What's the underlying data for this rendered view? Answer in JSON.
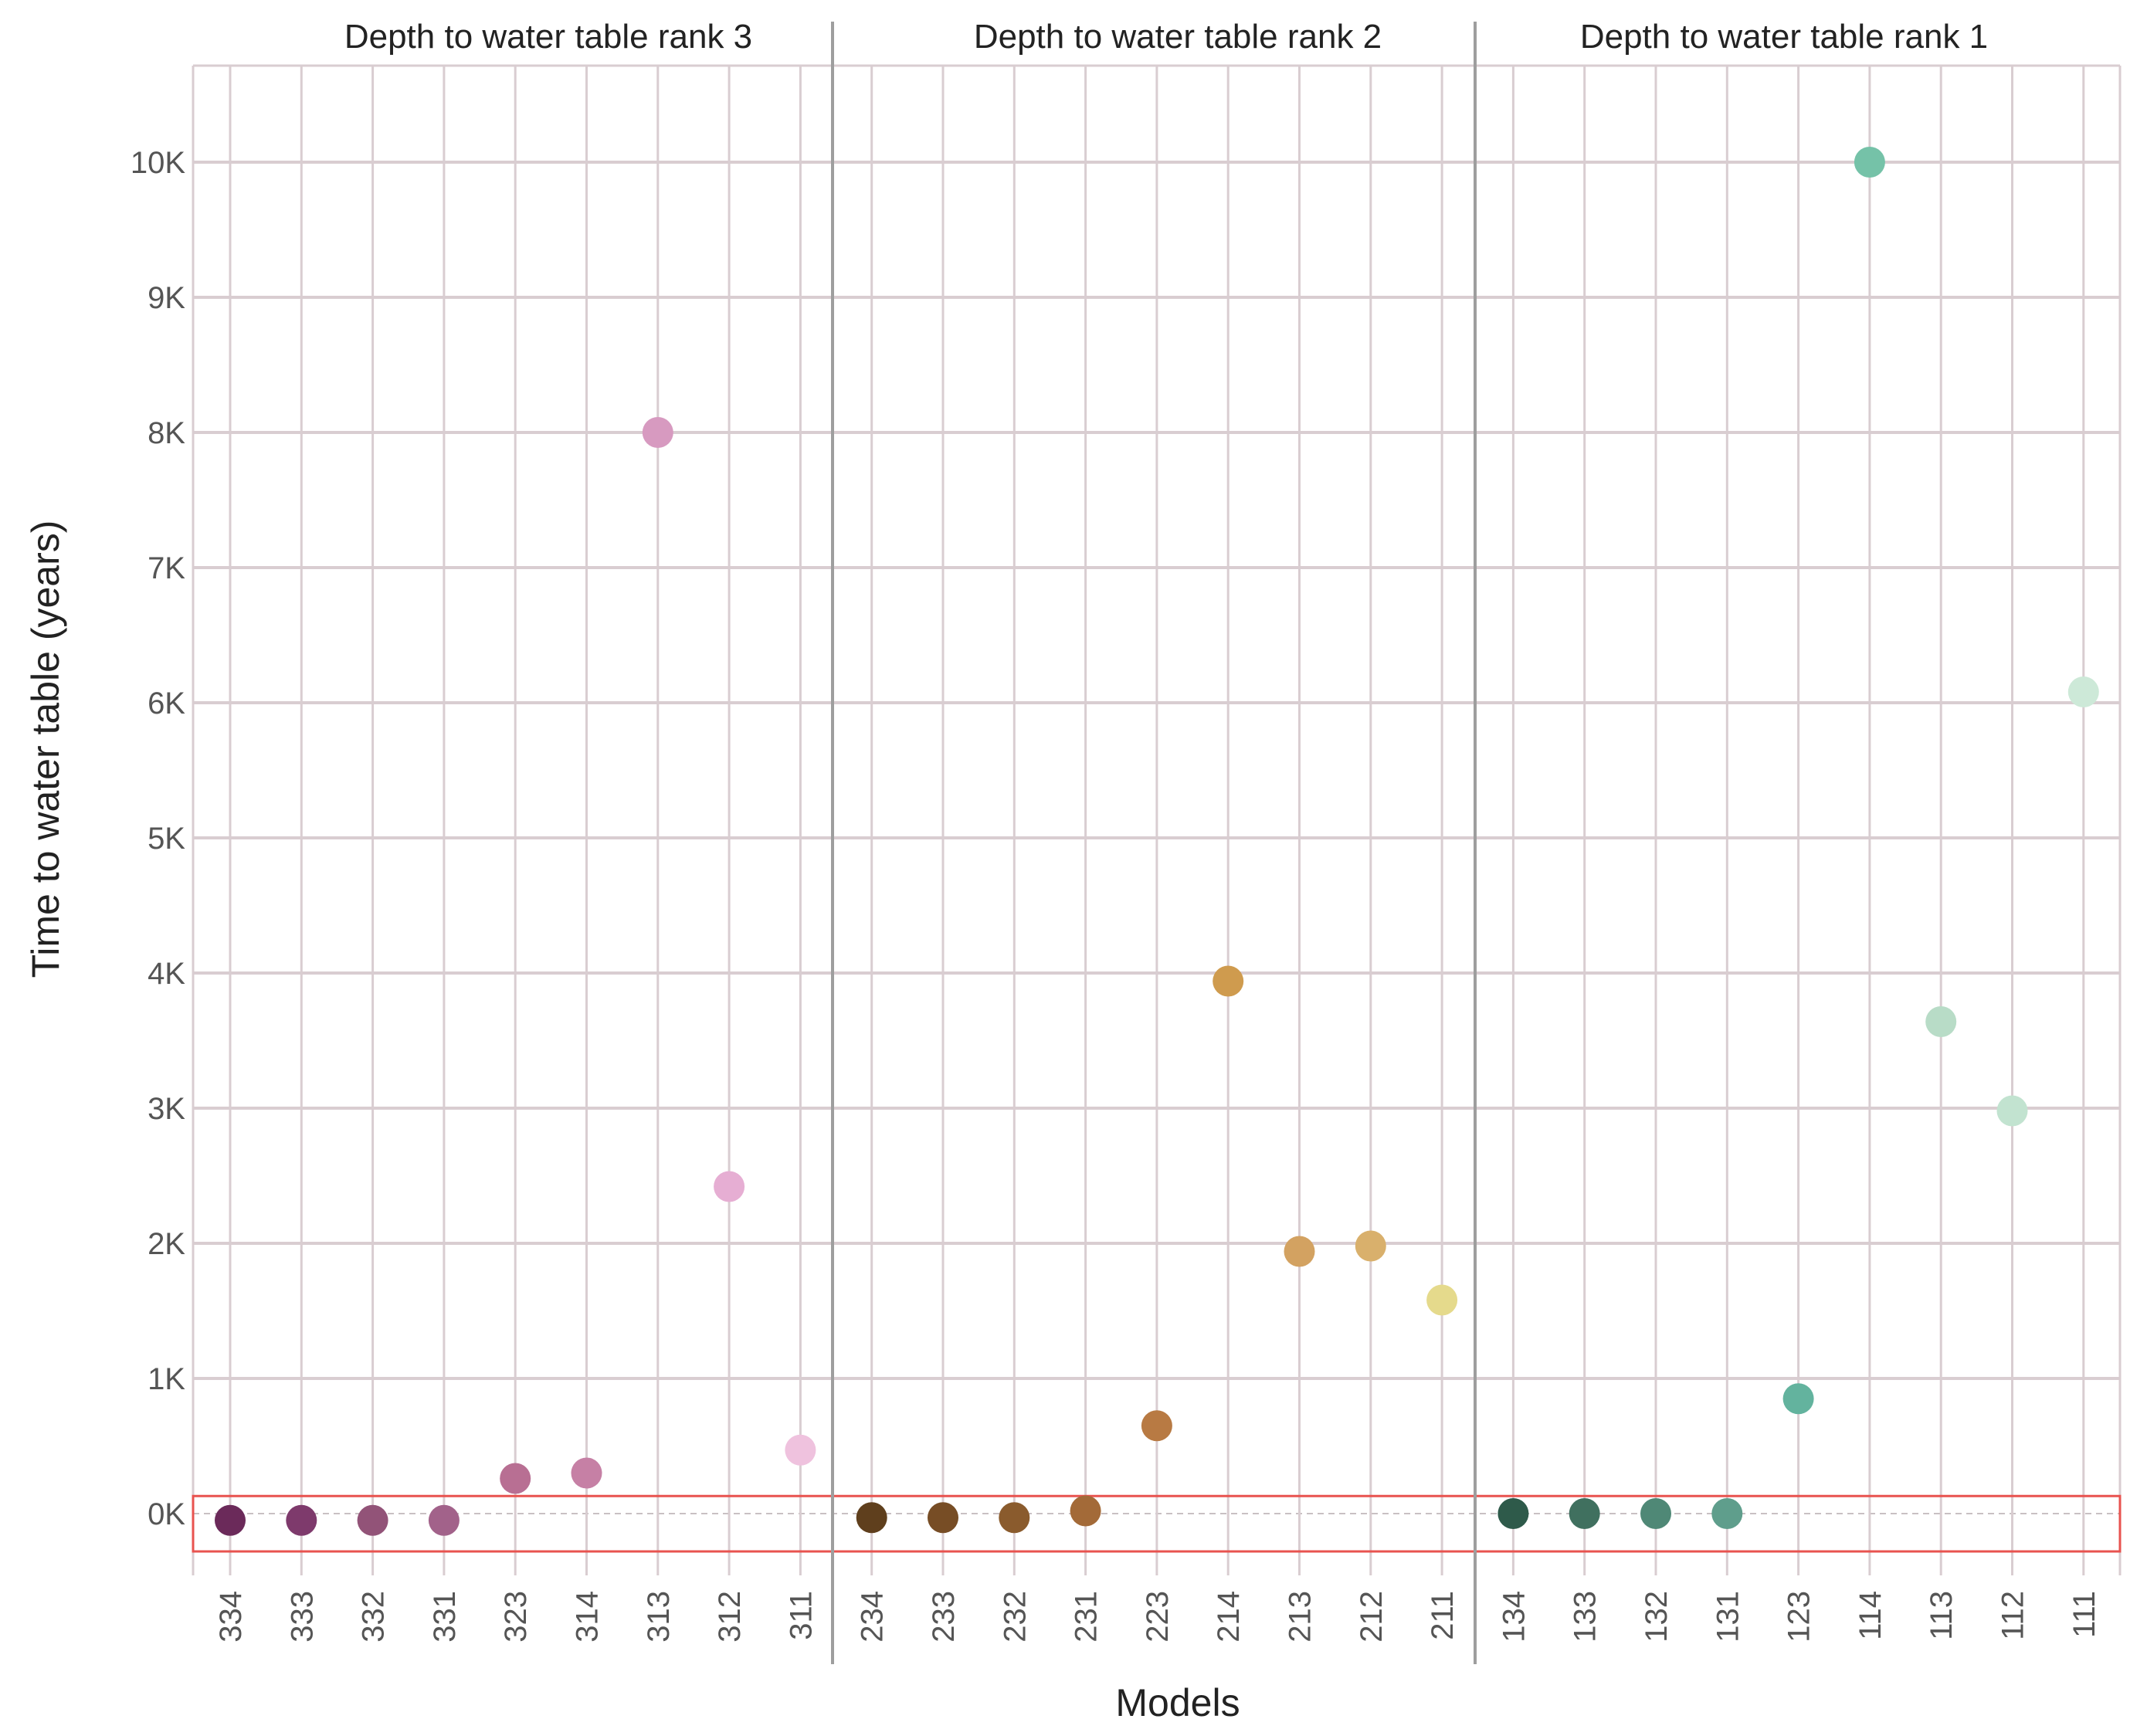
{
  "chart_data": {
    "type": "scatter",
    "xlabel": "Models",
    "ylabel": "Time to water table (years)",
    "ylim": [
      -500,
      10700
    ],
    "y_ticks": [
      {
        "value": 0,
        "label": "0K"
      },
      {
        "value": 1000,
        "label": "1K"
      },
      {
        "value": 2000,
        "label": "2K"
      },
      {
        "value": 3000,
        "label": "3K"
      },
      {
        "value": 4000,
        "label": "4K"
      },
      {
        "value": 5000,
        "label": "5K"
      },
      {
        "value": 6000,
        "label": "6K"
      },
      {
        "value": 7000,
        "label": "7K"
      },
      {
        "value": 8000,
        "label": "8K"
      },
      {
        "value": 9000,
        "label": "9K"
      },
      {
        "value": 10000,
        "label": "10K"
      }
    ],
    "grid": true,
    "highlight_band": {
      "from": -280,
      "to": 130,
      "color": "#e8534f"
    },
    "panels": [
      {
        "title": "Depth to water table rank 3",
        "points": [
          {
            "model": "334",
            "value": -50,
            "color": "#6b2a5a"
          },
          {
            "model": "333",
            "value": -50,
            "color": "#7e3a6c"
          },
          {
            "model": "332",
            "value": -50,
            "color": "#925378"
          },
          {
            "model": "331",
            "value": -50,
            "color": "#a2628a"
          },
          {
            "model": "323",
            "value": 260,
            "color": "#b86f93"
          },
          {
            "model": "314",
            "value": 300,
            "color": "#c680a5"
          },
          {
            "model": "313",
            "value": 8000,
            "color": "#d79ac0"
          },
          {
            "model": "312",
            "value": 2420,
            "color": "#e6aed3"
          },
          {
            "model": "311",
            "value": 470,
            "color": "#efc2de"
          }
        ]
      },
      {
        "title": "Depth to water table rank 2",
        "points": [
          {
            "model": "234",
            "value": -30,
            "color": "#5f3f1d"
          },
          {
            "model": "233",
            "value": -30,
            "color": "#774d25"
          },
          {
            "model": "232",
            "value": -30,
            "color": "#8a5b2d"
          },
          {
            "model": "231",
            "value": 20,
            "color": "#a36a38"
          },
          {
            "model": "223",
            "value": 650,
            "color": "#b87a43"
          },
          {
            "model": "214",
            "value": 3940,
            "color": "#cf9b4e"
          },
          {
            "model": "213",
            "value": 1940,
            "color": "#d3a261"
          },
          {
            "model": "212",
            "value": 1980,
            "color": "#d9b06c"
          },
          {
            "model": "211",
            "value": 1580,
            "color": "#e5da8c"
          }
        ]
      },
      {
        "title": "Depth to water table rank 1",
        "points": [
          {
            "model": "134",
            "value": 0,
            "color": "#2e5a4a"
          },
          {
            "model": "133",
            "value": 0,
            "color": "#40705f"
          },
          {
            "model": "132",
            "value": 0,
            "color": "#4f8876"
          },
          {
            "model": "131",
            "value": 0,
            "color": "#5f9e8c"
          },
          {
            "model": "123",
            "value": 850,
            "color": "#63b39e"
          },
          {
            "model": "114",
            "value": 10000,
            "color": "#75c2a8"
          },
          {
            "model": "113",
            "value": 3640,
            "color": "#b8dcc7"
          },
          {
            "model": "112",
            "value": 2980,
            "color": "#c2e3d0"
          },
          {
            "model": "111",
            "value": 6080,
            "color": "#cde9d8"
          }
        ]
      }
    ]
  }
}
